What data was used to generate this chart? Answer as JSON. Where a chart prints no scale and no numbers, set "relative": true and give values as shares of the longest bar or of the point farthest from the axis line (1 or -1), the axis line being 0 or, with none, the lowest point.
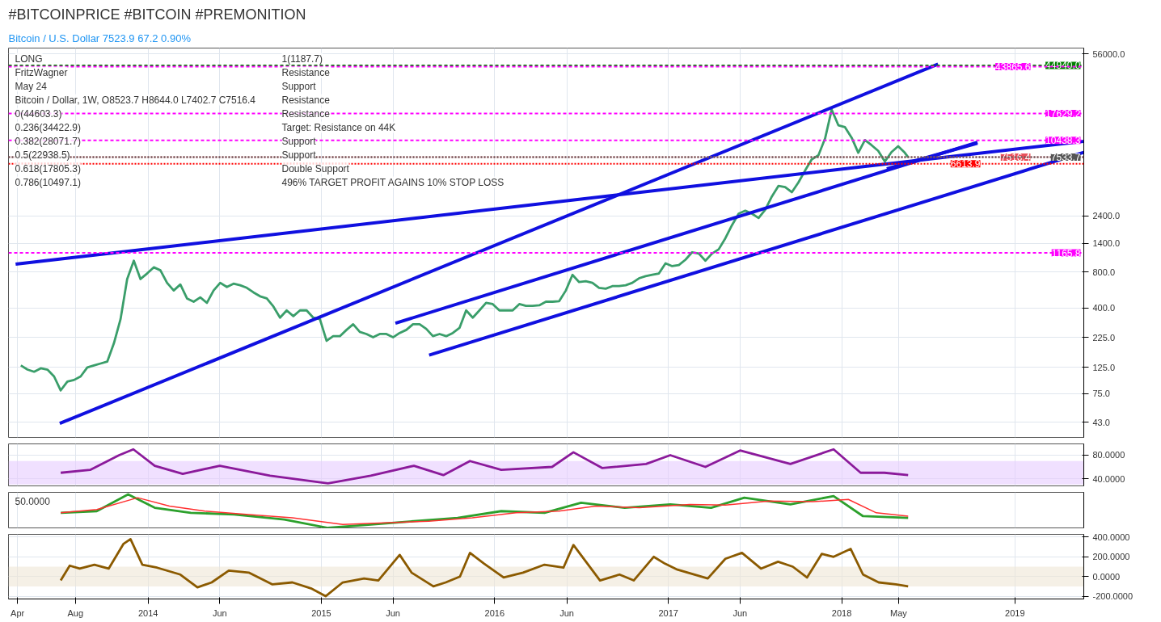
{
  "chart_data": [
    {
      "type": "line",
      "title": "#BITCOINPRICE #BITCOIN #PREMONITION",
      "subtitle": "Bitcoin / U.S. Dollar 7523.9 67.2 0.90%",
      "annotations": [
        "LONG",
        "FritzWagner",
        "May 24",
        "Bitcoin / Dollar, 1W, O8523.7 H8644.0 L7402.7 C7516.4",
        "0(44603.3)",
        "0.236(34422.9)",
        "0.382(28071.7)",
        "0.5(22938.5)",
        "0.618(17805.3)",
        "0.786(10497.1)",
        "1(1187.7)",
        "Resistance",
        "Support",
        "Resistance",
        "Resistance",
        "Target: Resistance on 44K",
        "Support",
        "Support",
        "Double Support",
        "496% TARGET PROFIT AGAINS 10% STOP LOSS"
      ],
      "log": "y",
      "grid": true,
      "line_style": "solid",
      "xlim": [
        "2013-03-13",
        "2019-05-26"
      ],
      "ylim": [
        32,
        63000
      ],
      "yticks": [
        {
          "value": 43,
          "label": "43.0"
        },
        {
          "value": 75,
          "label": "75.0"
        },
        {
          "value": 125,
          "label": "125.0"
        },
        {
          "value": 225,
          "label": "225.0"
        },
        {
          "value": 400,
          "label": "400.0"
        },
        {
          "value": 800,
          "label": "800.0"
        },
        {
          "value": 1400,
          "label": "1400.0"
        },
        {
          "value": 2400,
          "label": "2400.0"
        },
        {
          "value": 56000,
          "label": "56000.0"
        }
      ],
      "ref_lines": [
        {
          "axis": "y",
          "value": 44940,
          "label": "44940.0",
          "color": "#008000",
          "line_style": "dashed"
        },
        {
          "axis": "y",
          "value": 43865.6,
          "label": "43865.6",
          "color": "#ff00ff",
          "line_style": "dashed"
        },
        {
          "axis": "y",
          "value": 17629.2,
          "label": "17629.2",
          "color": "#ff00ff",
          "line_style": "dashed"
        },
        {
          "axis": "y",
          "value": 10438.3,
          "label": "10438.3",
          "color": "#ff00ff",
          "line_style": "dashed"
        },
        {
          "axis": "y",
          "value": 7516.4,
          "label": "7516.4",
          "color": "#e8505b",
          "line_style": "dotted"
        },
        {
          "axis": "y",
          "value": 7533.7,
          "label": "7533.7",
          "color": "#555555",
          "line_style": "dotted"
        },
        {
          "axis": "y",
          "value": 6613.9,
          "label": "6613.9",
          "color": "#ff0000",
          "line_style": "dotted"
        },
        {
          "axis": "y",
          "value": 1165.8,
          "label": "1165.8",
          "color": "#ff00ff",
          "line_style": "dashed"
        }
      ],
      "series": [
        {
          "color": "#3a9e6a",
          "x": [
            "2013-04-08",
            "2013-04-22",
            "2013-05-06",
            "2013-05-20",
            "2013-06-03",
            "2013-06-17",
            "2013-07-01",
            "2013-07-15",
            "2013-07-29",
            "2013-08-12",
            "2013-08-26",
            "2013-09-09",
            "2013-09-23",
            "2013-10-07",
            "2013-10-21",
            "2013-11-04",
            "2013-11-18",
            "2013-12-02",
            "2013-12-16",
            "2013-12-30",
            "2014-01-13",
            "2014-01-27",
            "2014-02-10",
            "2014-02-24",
            "2014-03-10",
            "2014-03-24",
            "2014-04-07",
            "2014-04-21",
            "2014-05-05",
            "2014-05-19",
            "2014-06-02",
            "2014-06-16",
            "2014-06-30",
            "2014-07-14",
            "2014-07-28",
            "2014-08-11",
            "2014-08-25",
            "2014-09-08",
            "2014-09-22",
            "2014-10-06",
            "2014-10-20",
            "2014-11-03",
            "2014-11-17",
            "2014-12-01",
            "2014-12-15",
            "2014-12-29",
            "2015-01-12",
            "2015-01-26",
            "2015-02-09",
            "2015-02-23",
            "2015-03-09",
            "2015-03-23",
            "2015-04-06",
            "2015-04-20",
            "2015-05-04",
            "2015-05-18",
            "2015-06-01",
            "2015-06-15",
            "2015-06-29",
            "2015-07-13",
            "2015-07-27",
            "2015-08-10",
            "2015-08-24",
            "2015-09-07",
            "2015-09-21",
            "2015-10-05",
            "2015-10-19",
            "2015-11-02",
            "2015-11-16",
            "2015-11-30",
            "2015-12-14",
            "2015-12-28",
            "2016-01-11",
            "2016-01-25",
            "2016-02-08",
            "2016-02-22",
            "2016-03-07",
            "2016-03-21",
            "2016-04-04",
            "2016-04-18",
            "2016-05-02",
            "2016-05-16",
            "2016-05-30",
            "2016-06-13",
            "2016-06-27",
            "2016-07-11",
            "2016-07-25",
            "2016-08-08",
            "2016-08-22",
            "2016-09-05",
            "2016-09-19",
            "2016-10-03",
            "2016-10-17",
            "2016-10-31",
            "2016-11-14",
            "2016-11-28",
            "2016-12-12",
            "2016-12-26",
            "2017-01-09",
            "2017-01-23",
            "2017-02-06",
            "2017-02-20",
            "2017-03-06",
            "2017-03-20",
            "2017-04-03",
            "2017-04-17",
            "2017-05-01",
            "2017-05-15",
            "2017-05-29",
            "2017-06-12",
            "2017-06-26",
            "2017-07-10",
            "2017-07-24",
            "2017-08-07",
            "2017-08-21",
            "2017-09-04",
            "2017-09-18",
            "2017-10-02",
            "2017-10-16",
            "2017-10-30",
            "2017-11-13",
            "2017-11-27",
            "2017-12-11",
            "2017-12-25",
            "2018-01-08",
            "2018-01-22",
            "2018-02-05",
            "2018-02-19",
            "2018-03-05",
            "2018-03-19",
            "2018-04-02",
            "2018-04-16",
            "2018-04-30",
            "2018-05-14",
            "2018-05-21"
          ],
          "values": [
            130,
            120,
            115,
            123,
            120,
            105,
            80,
            95,
            98,
            105,
            125,
            130,
            135,
            140,
            200,
            320,
            700,
            1000,
            700,
            780,
            880,
            830,
            650,
            560,
            630,
            480,
            450,
            490,
            440,
            560,
            650,
            600,
            640,
            620,
            590,
            540,
            500,
            480,
            410,
            330,
            380,
            340,
            380,
            380,
            330,
            320,
            210,
            230,
            230,
            260,
            290,
            250,
            240,
            225,
            240,
            240,
            225,
            245,
            260,
            290,
            290,
            265,
            230,
            240,
            230,
            245,
            270,
            380,
            330,
            380,
            440,
            430,
            380,
            380,
            380,
            430,
            415,
            415,
            420,
            450,
            450,
            455,
            560,
            760,
            660,
            670,
            650,
            590,
            580,
            610,
            610,
            620,
            650,
            710,
            740,
            760,
            780,
            950,
            900,
            920,
            1020,
            1180,
            1150,
            1000,
            1150,
            1250,
            1550,
            2000,
            2500,
            2650,
            2500,
            2300,
            2700,
            3500,
            4300,
            4200,
            3800,
            4600,
            5800,
            7200,
            7800,
            10800,
            19000,
            14000,
            13500,
            11000,
            8200,
            10500,
            9500,
            8500,
            6900,
            8300,
            9300,
            8200,
            7516.4
          ]
        },
        {
          "color": "#1010e0",
          "x": [
            "2013-03-28",
            "2019-05-25"
          ],
          "values": [
            935,
            10240
          ]
        },
        {
          "color": "#1010e0",
          "x": [
            "2013-06-29",
            "2018-07-23"
          ],
          "values": [
            42,
            46100
          ]
        },
        {
          "color": "#1010e0",
          "x": [
            "2015-06-06",
            "2018-10-14"
          ],
          "values": [
            296,
            10050
          ]
        },
        {
          "color": "#1010e0",
          "x": [
            "2015-08-16",
            "2019-05-26"
          ],
          "values": [
            159,
            8260
          ]
        },
        {
          "color": "#1010e0",
          "x": [
            "2018-04-06",
            "2018-10-14"
          ],
          "values": [
            6010,
            9870
          ]
        }
      ]
    },
    {
      "type": "line",
      "grid": true,
      "xlim": [
        "2013-03-13",
        "2019-05-26"
      ],
      "ylim": [
        27.6,
        99.3
      ],
      "yticks": [
        {
          "value": 80,
          "label": "80.0000"
        },
        {
          "value": 40,
          "label": "40.0000"
        }
      ],
      "bands": [
        {
          "axis": "y",
          "from": 30,
          "to": 70,
          "color": "#e6ccff"
        }
      ],
      "series": [
        {
          "color": "#8b1a9b",
          "x": [
            "2013-07-01",
            "2013-09-01",
            "2013-11-01",
            "2013-12-01",
            "2014-01-15",
            "2014-03-15",
            "2014-06-01",
            "2014-09-15",
            "2015-01-15",
            "2015-04-15",
            "2015-07-15",
            "2015-09-15",
            "2015-11-10",
            "2016-01-15",
            "2016-05-01",
            "2016-06-15",
            "2016-08-15",
            "2016-11-15",
            "2017-01-05",
            "2017-03-20",
            "2017-06-01",
            "2017-09-15",
            "2017-12-15",
            "2018-02-10",
            "2018-04-01",
            "2018-05-21"
          ],
          "values": [
            50,
            55,
            80,
            90,
            62,
            48,
            62,
            45,
            32,
            45,
            62,
            46,
            70,
            55,
            60,
            85,
            58,
            65,
            80,
            60,
            88,
            65,
            90,
            50,
            50,
            46
          ]
        }
      ]
    },
    {
      "type": "line",
      "relative": true,
      "grid": true,
      "annotations": [
        "50.0000"
      ],
      "xlim": [
        "2013-03-13",
        "2019-05-26"
      ],
      "series": [
        {
          "color": "#2ca02c",
          "x": [
            "2013-07-01",
            "2013-09-15",
            "2013-11-20",
            "2014-01-15",
            "2014-04-01",
            "2014-07-01",
            "2014-10-15",
            "2015-01-15",
            "2015-04-15",
            "2015-07-15",
            "2015-10-15",
            "2016-01-15",
            "2016-04-15",
            "2016-07-01",
            "2016-10-01",
            "2017-01-05",
            "2017-04-01",
            "2017-06-10",
            "2017-09-15",
            "2017-12-15",
            "2018-02-15",
            "2018-05-21"
          ],
          "values": [
            0.45,
            0.5,
            1.0,
            0.6,
            0.45,
            0.4,
            0.25,
            0,
            0.1,
            0.2,
            0.3,
            0.5,
            0.45,
            0.75,
            0.6,
            0.7,
            0.6,
            0.9,
            0.7,
            0.95,
            0.35,
            0.3
          ]
        },
        {
          "color": "#ff3030",
          "x": [
            "2013-07-01",
            "2013-09-15",
            "2013-12-10",
            "2014-02-15",
            "2014-05-01",
            "2014-08-01",
            "2014-11-01",
            "2015-02-15",
            "2015-05-15",
            "2015-08-15",
            "2015-11-15",
            "2016-02-15",
            "2016-05-15",
            "2016-08-01",
            "2016-11-01",
            "2017-02-15",
            "2017-05-01",
            "2017-08-01",
            "2017-11-01",
            "2018-01-15",
            "2018-03-15",
            "2018-05-21"
          ],
          "values": [
            0.45,
            0.55,
            0.9,
            0.65,
            0.5,
            0.4,
            0.3,
            0.1,
            0.15,
            0.2,
            0.3,
            0.45,
            0.5,
            0.65,
            0.6,
            0.7,
            0.68,
            0.8,
            0.78,
            0.85,
            0.45,
            0.35
          ]
        }
      ]
    },
    {
      "type": "line",
      "grid": true,
      "xlim": [
        "2013-03-13",
        "2019-05-26"
      ],
      "xticks": [
        {
          "value": "2013-04-01",
          "label": "Apr"
        },
        {
          "value": "2013-08-01",
          "label": "Aug"
        },
        {
          "value": "2014-01-01",
          "label": "2014"
        },
        {
          "value": "2014-06-01",
          "label": "Jun"
        },
        {
          "value": "2015-01-01",
          "label": "2015"
        },
        {
          "value": "2015-06-01",
          "label": "Jun"
        },
        {
          "value": "2016-01-01",
          "label": "2016"
        },
        {
          "value": "2016-06-01",
          "label": "Jun"
        },
        {
          "value": "2017-01-01",
          "label": "2017"
        },
        {
          "value": "2017-06-01",
          "label": "Jun"
        },
        {
          "value": "2018-01-01",
          "label": "2018"
        },
        {
          "value": "2018-05-01",
          "label": "May"
        },
        {
          "value": "2019-01-01",
          "label": "2019"
        }
      ],
      "ylim": [
        -228,
        428
      ],
      "yticks": [
        {
          "value": 400,
          "label": "400.0000"
        },
        {
          "value": 200,
          "label": "200.0000"
        },
        {
          "value": 0,
          "label": "0.0000"
        },
        {
          "value": -200,
          "label": "-200.0000"
        }
      ],
      "bands": [
        {
          "axis": "y",
          "from": -100,
          "to": 100,
          "color": "#efe6d6"
        }
      ],
      "series": [
        {
          "color": "#8b5a00",
          "x": [
            "2013-07-01",
            "2013-07-20",
            "2013-08-10",
            "2013-09-10",
            "2013-10-10",
            "2013-11-10",
            "2013-11-25",
            "2013-12-20",
            "2014-01-20",
            "2014-03-10",
            "2014-04-15",
            "2014-05-15",
            "2014-06-20",
            "2014-08-01",
            "2014-09-20",
            "2014-11-01",
            "2014-12-10",
            "2015-01-10",
            "2015-02-15",
            "2015-04-01",
            "2015-05-01",
            "2015-06-15",
            "2015-07-10",
            "2015-08-25",
            "2015-09-20",
            "2015-10-20",
            "2015-11-10",
            "2015-12-10",
            "2016-01-20",
            "2016-03-01",
            "2016-04-15",
            "2016-05-25",
            "2016-06-15",
            "2016-08-10",
            "2016-09-20",
            "2016-10-20",
            "2016-12-01",
            "2016-12-25",
            "2017-01-20",
            "2017-03-25",
            "2017-05-01",
            "2017-06-05",
            "2017-07-15",
            "2017-08-20",
            "2017-09-20",
            "2017-10-20",
            "2017-11-20",
            "2017-12-15",
            "2018-01-20",
            "2018-02-15",
            "2018-03-20",
            "2018-04-25",
            "2018-05-21"
          ],
          "values": [
            -40,
            110,
            80,
            120,
            80,
            330,
            380,
            120,
            90,
            20,
            -110,
            -60,
            60,
            40,
            -80,
            -60,
            -120,
            -200,
            -60,
            -20,
            -40,
            220,
            40,
            -100,
            -60,
            0,
            240,
            130,
            -10,
            40,
            120,
            90,
            320,
            -40,
            20,
            -40,
            200,
            130,
            70,
            -20,
            180,
            240,
            80,
            150,
            100,
            -10,
            230,
            200,
            280,
            20,
            -60,
            -80,
            -100
          ]
        }
      ]
    }
  ]
}
